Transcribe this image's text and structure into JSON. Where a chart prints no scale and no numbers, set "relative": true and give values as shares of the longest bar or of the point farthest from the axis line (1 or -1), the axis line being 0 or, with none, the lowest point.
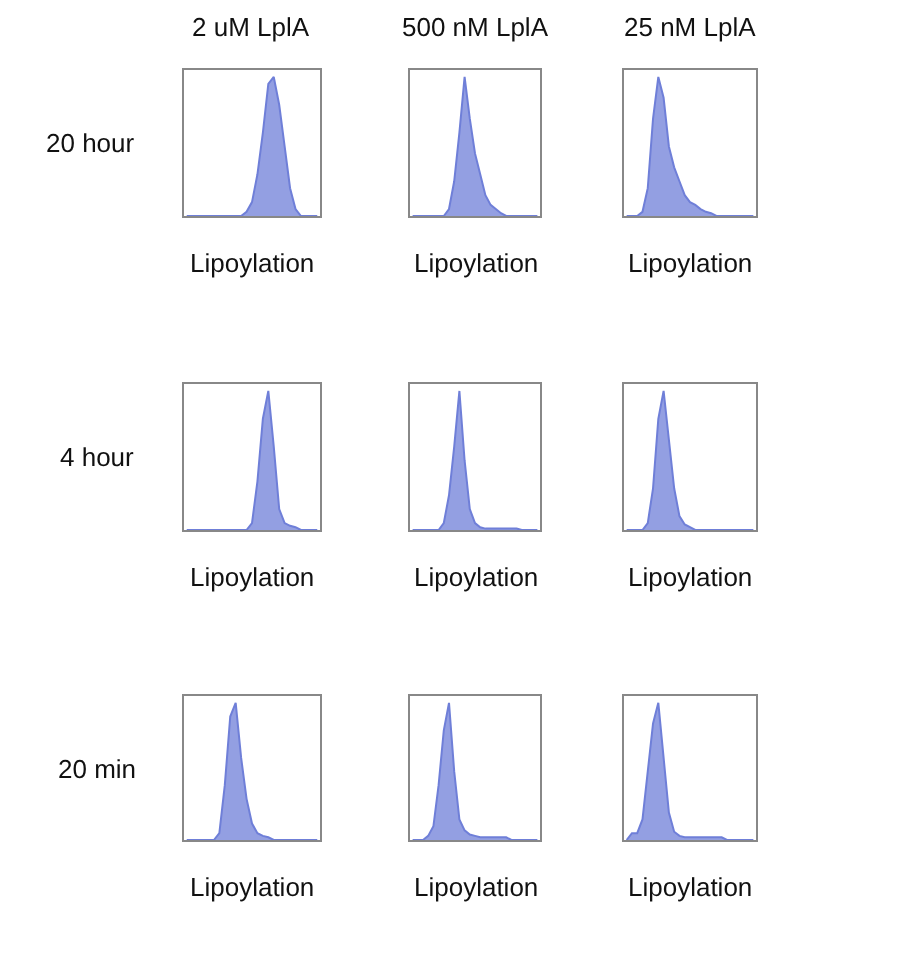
{
  "chart_data": [
    {
      "type": "area",
      "relative": true,
      "title": "2 uM LplA",
      "xlabel": "Lipoylation",
      "annotations": [
        "20 hour"
      ],
      "categories": [
        null,
        null,
        null,
        null,
        null,
        null,
        null,
        null,
        null,
        null,
        null,
        null,
        null,
        null,
        null,
        null,
        null,
        null,
        null,
        null,
        null,
        null,
        null,
        null,
        null
      ],
      "series": [
        {
          "color": "#6f7fd8",
          "values": [
            0,
            0,
            0,
            0,
            0,
            0,
            0,
            0,
            0,
            0,
            0,
            0.03,
            0.1,
            0.3,
            0.6,
            0.95,
            1.0,
            0.8,
            0.5,
            0.2,
            0.05,
            0,
            0,
            0,
            0
          ]
        }
      ]
    },
    {
      "type": "area",
      "relative": true,
      "title": "500 nM LplA",
      "xlabel": "Lipoylation",
      "categories": [
        null,
        null,
        null,
        null,
        null,
        null,
        null,
        null,
        null,
        null,
        null,
        null,
        null,
        null,
        null,
        null,
        null,
        null,
        null,
        null,
        null,
        null,
        null,
        null,
        null
      ],
      "series": [
        {
          "color": "#6f7fd8",
          "values": [
            0,
            0,
            0,
            0,
            0,
            0,
            0,
            0.05,
            0.25,
            0.6,
            1.0,
            0.7,
            0.45,
            0.3,
            0.15,
            0.08,
            0.05,
            0.02,
            0,
            0,
            0,
            0,
            0,
            0,
            0
          ]
        }
      ]
    },
    {
      "type": "area",
      "relative": true,
      "title": "25 nM LplA",
      "xlabel": "Lipoylation",
      "categories": [
        null,
        null,
        null,
        null,
        null,
        null,
        null,
        null,
        null,
        null,
        null,
        null,
        null,
        null,
        null,
        null,
        null,
        null,
        null,
        null,
        null,
        null,
        null,
        null,
        null
      ],
      "series": [
        {
          "color": "#6f7fd8",
          "values": [
            0,
            0,
            0,
            0.03,
            0.2,
            0.7,
            1.0,
            0.85,
            0.5,
            0.35,
            0.25,
            0.15,
            0.1,
            0.08,
            0.05,
            0.03,
            0.02,
            0,
            0,
            0,
            0,
            0,
            0,
            0,
            0
          ]
        }
      ]
    },
    {
      "type": "area",
      "relative": true,
      "xlabel": "Lipoylation",
      "annotations": [
        "4 hour"
      ],
      "categories": [
        null,
        null,
        null,
        null,
        null,
        null,
        null,
        null,
        null,
        null,
        null,
        null,
        null,
        null,
        null,
        null,
        null,
        null,
        null,
        null,
        null,
        null,
        null,
        null,
        null
      ],
      "series": [
        {
          "color": "#6f7fd8",
          "values": [
            0,
            0,
            0,
            0,
            0,
            0,
            0,
            0,
            0,
            0,
            0,
            0,
            0.05,
            0.35,
            0.8,
            1.0,
            0.6,
            0.15,
            0.05,
            0.03,
            0.02,
            0,
            0,
            0,
            0
          ]
        }
      ]
    },
    {
      "type": "area",
      "relative": true,
      "xlabel": "Lipoylation",
      "categories": [
        null,
        null,
        null,
        null,
        null,
        null,
        null,
        null,
        null,
        null,
        null,
        null,
        null,
        null,
        null,
        null,
        null,
        null,
        null,
        null,
        null,
        null,
        null,
        null,
        null
      ],
      "series": [
        {
          "color": "#6f7fd8",
          "values": [
            0,
            0,
            0,
            0,
            0,
            0,
            0.05,
            0.25,
            0.6,
            1.0,
            0.5,
            0.15,
            0.05,
            0.02,
            0.01,
            0.01,
            0.01,
            0.01,
            0.01,
            0.01,
            0.01,
            0,
            0,
            0,
            0
          ]
        }
      ]
    },
    {
      "type": "area",
      "relative": true,
      "xlabel": "Lipoylation",
      "categories": [
        null,
        null,
        null,
        null,
        null,
        null,
        null,
        null,
        null,
        null,
        null,
        null,
        null,
        null,
        null,
        null,
        null,
        null,
        null,
        null,
        null,
        null,
        null,
        null,
        null
      ],
      "series": [
        {
          "color": "#6f7fd8",
          "values": [
            0,
            0,
            0,
            0,
            0.05,
            0.3,
            0.8,
            1.0,
            0.65,
            0.3,
            0.1,
            0.04,
            0.02,
            0,
            0,
            0,
            0,
            0,
            0,
            0,
            0,
            0,
            0,
            0,
            0
          ]
        }
      ]
    },
    {
      "type": "area",
      "relative": true,
      "xlabel": "Lipoylation",
      "annotations": [
        "20 min"
      ],
      "categories": [
        null,
        null,
        null,
        null,
        null,
        null,
        null,
        null,
        null,
        null,
        null,
        null,
        null,
        null,
        null,
        null,
        null,
        null,
        null,
        null,
        null,
        null,
        null,
        null,
        null
      ],
      "series": [
        {
          "color": "#6f7fd8",
          "values": [
            0,
            0,
            0,
            0,
            0,
            0,
            0.05,
            0.4,
            0.9,
            1.0,
            0.6,
            0.3,
            0.12,
            0.05,
            0.03,
            0.02,
            0,
            0,
            0,
            0,
            0,
            0,
            0,
            0,
            0
          ]
        }
      ]
    },
    {
      "type": "area",
      "relative": true,
      "xlabel": "Lipoylation",
      "categories": [
        null,
        null,
        null,
        null,
        null,
        null,
        null,
        null,
        null,
        null,
        null,
        null,
        null,
        null,
        null,
        null,
        null,
        null,
        null,
        null,
        null,
        null,
        null,
        null,
        null
      ],
      "series": [
        {
          "color": "#6f7fd8",
          "values": [
            0,
            0,
            0,
            0.03,
            0.1,
            0.4,
            0.8,
            1.0,
            0.5,
            0.15,
            0.07,
            0.04,
            0.03,
            0.02,
            0.02,
            0.02,
            0.02,
            0.02,
            0.02,
            0,
            0,
            0,
            0,
            0,
            0
          ]
        }
      ]
    },
    {
      "type": "area",
      "relative": true,
      "xlabel": "Lipoylation",
      "categories": [
        null,
        null,
        null,
        null,
        null,
        null,
        null,
        null,
        null,
        null,
        null,
        null,
        null,
        null,
        null,
        null,
        null,
        null,
        null,
        null,
        null,
        null,
        null,
        null,
        null
      ],
      "series": [
        {
          "color": "#6f7fd8",
          "values": [
            0,
            0.05,
            0.05,
            0.15,
            0.5,
            0.85,
            1.0,
            0.6,
            0.2,
            0.06,
            0.03,
            0.02,
            0.02,
            0.02,
            0.02,
            0.02,
            0.02,
            0.02,
            0.02,
            0,
            0,
            0,
            0,
            0,
            0
          ]
        }
      ]
    }
  ]
}
